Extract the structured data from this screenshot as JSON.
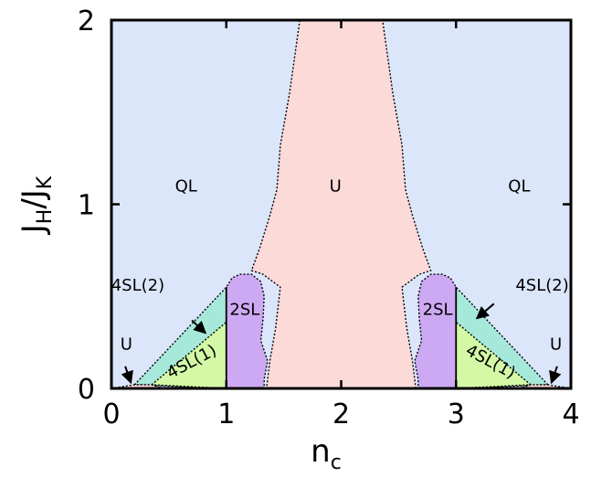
{
  "chart_data": {
    "type": "area",
    "xlabel": {
      "main": "n",
      "sub": "c"
    },
    "ylabel": {
      "main": "J",
      "sub1": "H",
      "sep": "/J",
      "sub2": "K"
    },
    "xlim": [
      0,
      4
    ],
    "ylim": [
      0,
      2
    ],
    "xticks": [
      "0",
      "1",
      "2",
      "3",
      "4"
    ],
    "yticks": [
      "0",
      "1",
      "2"
    ],
    "grid": false,
    "colors": {
      "QL": "#dce6fb",
      "U": "#fcdad8",
      "2SL": "#cda9f3",
      "4SL1": "#d4f9a6",
      "4SL2": "#a6e8d9"
    },
    "regions": [
      {
        "name": "QL",
        "label": "QL",
        "fill": "#dce6fb",
        "points": [
          [
            0,
            0
          ],
          [
            0,
            2
          ],
          [
            4,
            2
          ],
          [
            4,
            0
          ]
        ]
      },
      {
        "name": "U",
        "label": "U",
        "fill": "#fcdad8",
        "points": [
          [
            1.64,
            2
          ],
          [
            1.55,
            1.6
          ],
          [
            1.47,
            1.32
          ],
          [
            1.44,
            1.08
          ],
          [
            1.38,
            0.94
          ],
          [
            1.29,
            0.76
          ],
          [
            1.22,
            0.64
          ],
          [
            1.32,
            0.62
          ],
          [
            1.47,
            0.55
          ],
          [
            1.43,
            0.33
          ],
          [
            1.38,
            0.15
          ],
          [
            1.35,
            0
          ],
          [
            2.65,
            0
          ],
          [
            2.62,
            0.15
          ],
          [
            2.57,
            0.33
          ],
          [
            2.53,
            0.55
          ],
          [
            2.68,
            0.62
          ],
          [
            2.78,
            0.64
          ],
          [
            2.71,
            0.76
          ],
          [
            2.62,
            0.94
          ],
          [
            2.56,
            1.08
          ],
          [
            2.53,
            1.32
          ],
          [
            2.45,
            1.6
          ],
          [
            2.36,
            2
          ]
        ]
      },
      {
        "name": "4SL(2)",
        "label": "4SL(2)",
        "fill": "#a6e8d9",
        "points": [
          [
            0.2,
            0.02
          ],
          [
            1,
            0.55
          ],
          [
            1,
            0
          ]
        ]
      },
      {
        "name": "4SL(2)",
        "label": "4SL(2)",
        "fill": "#a6e8d9",
        "points": [
          [
            3.8,
            0.02
          ],
          [
            3,
            0.55
          ],
          [
            3,
            0
          ]
        ]
      },
      {
        "name": "4SL(1)",
        "label": "4SL(1)",
        "fill": "#d4f9a6",
        "points": [
          [
            0.35,
            0.02
          ],
          [
            1,
            0.36
          ],
          [
            1,
            0
          ]
        ]
      },
      {
        "name": "4SL(1)",
        "label": "4SL(1)",
        "fill": "#d4f9a6",
        "points": [
          [
            3.65,
            0.02
          ],
          [
            3,
            0.36
          ],
          [
            3,
            0
          ]
        ]
      },
      {
        "name": "U",
        "label": "U",
        "fill": "#fcdad8",
        "points": [
          [
            0,
            0
          ],
          [
            0.2,
            0.02
          ],
          [
            0.35,
            0.02
          ],
          [
            0.45,
            0
          ],
          [
            0,
            0
          ]
        ]
      },
      {
        "name": "U",
        "label": "U",
        "fill": "#fcdad8",
        "points": [
          [
            4,
            0
          ],
          [
            3.8,
            0.02
          ],
          [
            3.65,
            0.02
          ],
          [
            3.55,
            0
          ],
          [
            4,
            0
          ]
        ]
      },
      {
        "name": "2SL",
        "label": "2SL",
        "fill": "#cda9f3",
        "points": [
          [
            1,
            0
          ],
          [
            1,
            0.55
          ],
          [
            1.05,
            0.6
          ],
          [
            1.12,
            0.62
          ],
          [
            1.22,
            0.62
          ],
          [
            1.3,
            0.58
          ],
          [
            1.33,
            0.5
          ],
          [
            1.32,
            0.38
          ],
          [
            1.3,
            0.26
          ],
          [
            1.36,
            0.15
          ],
          [
            1.33,
            0.05
          ],
          [
            1.33,
            0
          ]
        ]
      },
      {
        "name": "2SL",
        "label": "2SL",
        "fill": "#cda9f3",
        "points": [
          [
            3,
            0
          ],
          [
            3,
            0.55
          ],
          [
            2.95,
            0.6
          ],
          [
            2.88,
            0.62
          ],
          [
            2.78,
            0.62
          ],
          [
            2.7,
            0.58
          ],
          [
            2.67,
            0.5
          ],
          [
            2.68,
            0.38
          ],
          [
            2.7,
            0.26
          ],
          [
            2.64,
            0.15
          ],
          [
            2.67,
            0.05
          ],
          [
            2.67,
            0
          ]
        ]
      }
    ],
    "labels": [
      {
        "text": "QL",
        "x": 0.65,
        "y": 1.07
      },
      {
        "text": "U",
        "x": 1.95,
        "y": 1.07
      },
      {
        "text": "QL",
        "x": 3.55,
        "y": 1.07
      },
      {
        "text": "4SL(2)",
        "x": 0.23,
        "y": 0.53
      },
      {
        "text": "4SL(2)",
        "x": 3.75,
        "y": 0.53
      },
      {
        "text": "2SL",
        "x": 1.16,
        "y": 0.4
      },
      {
        "text": "2SL",
        "x": 2.84,
        "y": 0.4
      },
      {
        "text": "4SL(1)",
        "x": 0.72,
        "y": 0.12,
        "rotate": -28
      },
      {
        "text": "4SL(1)",
        "x": 3.28,
        "y": 0.12,
        "rotate": 28
      },
      {
        "text": "U",
        "x": 0.13,
        "y": 0.21
      },
      {
        "text": "U",
        "x": 3.87,
        "y": 0.21
      }
    ],
    "arrows": [
      {
        "from": [
          0.7,
          0.37
        ],
        "to": [
          0.82,
          0.3
        ]
      },
      {
        "from": [
          3.33,
          0.46
        ],
        "to": [
          3.18,
          0.38
        ]
      },
      {
        "from": [
          0.12,
          0.12
        ],
        "to": [
          0.17,
          0.03
        ]
      },
      {
        "from": [
          3.88,
          0.12
        ],
        "to": [
          3.83,
          0.03
        ]
      }
    ]
  }
}
